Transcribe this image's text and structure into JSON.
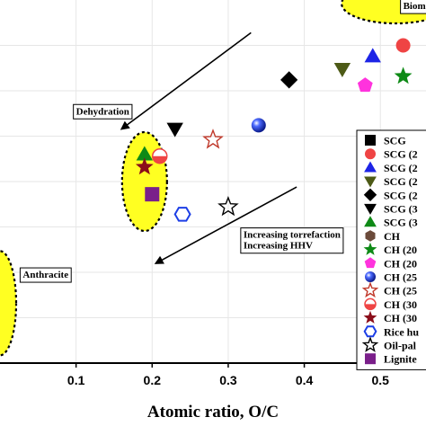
{
  "chart_data": {
    "type": "scatter",
    "xlabel": "Atomic ratio, O/C",
    "x_ticks": [
      "0.1",
      "0.2",
      "0.3",
      "0.4",
      "0.5"
    ],
    "xlim": [
      0,
      0.56
    ],
    "ylim": [
      0,
      2.0
    ],
    "grid": true,
    "legend_position": "right",
    "annotations": [
      {
        "text": "Biomass",
        "x": 0.53,
        "y": 1.95
      },
      {
        "text": "Dehydration",
        "x": 0.1,
        "y": 1.37
      },
      {
        "text": "Increasing torrefaction",
        "x": 0.32,
        "y": 0.69
      },
      {
        "text": "Increasing HHV",
        "x": 0.32,
        "y": 0.63
      },
      {
        "text": "Anthracite",
        "x": 0.03,
        "y": 0.47
      }
    ],
    "series": [
      {
        "name": "SCG",
        "marker": "square",
        "color": "#000000",
        "points": []
      },
      {
        "name": "SCG (2",
        "marker": "circle",
        "color": "#ef4444",
        "points": [
          [
            0.53,
            1.75
          ]
        ]
      },
      {
        "name": "SCG (2",
        "marker": "triangle-up",
        "color": "#1d24e6",
        "points": [
          [
            0.49,
            1.69
          ]
        ]
      },
      {
        "name": "SCG (2",
        "marker": "triangle-down",
        "color": "#4d5a16",
        "points": [
          [
            0.45,
            1.62
          ]
        ]
      },
      {
        "name": "SCG (2",
        "marker": "diamond",
        "color": "#000000",
        "points": [
          [
            0.38,
            1.56
          ]
        ]
      },
      {
        "name": "SCG (3",
        "marker": "triangle-down",
        "color": "#000000",
        "points": [
          [
            0.23,
            1.29
          ]
        ]
      },
      {
        "name": "SCG (3",
        "marker": "triangle-up",
        "color": "#0e8a16",
        "points": [
          [
            0.19,
            1.15
          ]
        ]
      },
      {
        "name": "CH",
        "marker": "hexagon",
        "color": "#6b4a3a",
        "points": []
      },
      {
        "name": "CH (20",
        "marker": "star",
        "color": "#0e8a16",
        "points": [
          [
            0.53,
            1.58
          ]
        ]
      },
      {
        "name": "CH (20",
        "marker": "pentagon",
        "color": "#ff33dd",
        "points": [
          [
            0.48,
            1.53
          ]
        ]
      },
      {
        "name": "CH (25",
        "marker": "sphere",
        "color": "#1d3fe6",
        "points": [
          [
            0.34,
            1.31
          ]
        ]
      },
      {
        "name": "CH (25",
        "marker": "star-open",
        "color": "#c0392b",
        "points": [
          [
            0.28,
            1.23
          ]
        ]
      },
      {
        "name": "CH (30",
        "marker": "circle-half",
        "color": "#ef4444",
        "points": [
          [
            0.21,
            1.14
          ]
        ]
      },
      {
        "name": "CH (30",
        "marker": "star",
        "color": "#8b0d1a",
        "points": [
          [
            0.19,
            1.08
          ]
        ]
      },
      {
        "name": "Rice hu",
        "marker": "hexagon-open",
        "color": "#1d3fe6",
        "points": [
          [
            0.24,
            0.82
          ]
        ]
      },
      {
        "name": "Oil-pal",
        "marker": "star-open",
        "color": "#000000",
        "points": [
          [
            0.3,
            0.86
          ]
        ]
      },
      {
        "name": "Lignite",
        "marker": "square",
        "color": "#7a1f8a",
        "points": [
          [
            0.2,
            0.93
          ]
        ]
      }
    ]
  }
}
